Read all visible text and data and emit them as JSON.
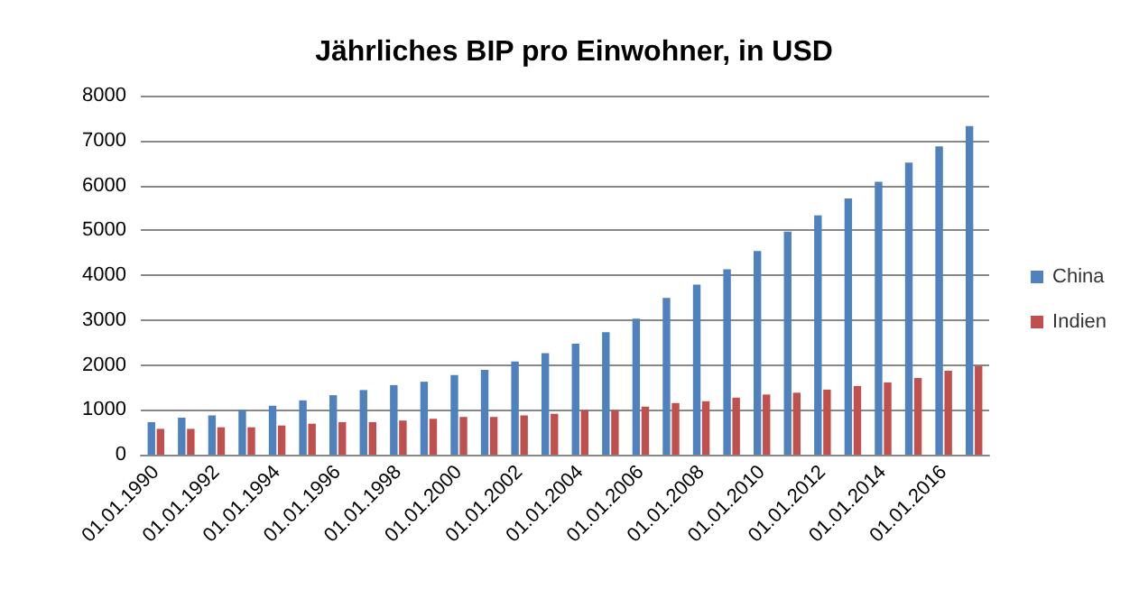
{
  "chart_data": {
    "type": "bar",
    "title": "Jährliches BIP pro Einwohner, in USD",
    "categories": [
      "01.01.1990",
      null,
      "01.01.1992",
      null,
      "01.01.1994",
      null,
      "01.01.1996",
      null,
      "01.01.1998",
      null,
      "01.01.2000",
      null,
      "01.01.2002",
      null,
      "01.01.2004",
      null,
      "01.01.2006",
      null,
      "01.01.2008",
      null,
      "01.01.2010",
      null,
      "01.01.2012",
      null,
      "01.01.2014",
      null,
      "01.01.2016",
      null
    ],
    "series": [
      {
        "name": "China",
        "color": "#4f81bd",
        "values": [
          725,
          825,
          875,
          1000,
          1090,
          1210,
          1325,
          1440,
          1550,
          1625,
          1775,
          1890,
          2075,
          2260,
          2470,
          2730,
          3030,
          3490,
          3790,
          4130,
          4540,
          4970,
          5330,
          5710,
          6080,
          6510,
          6870,
          7320
        ]
      },
      {
        "name": "Indien",
        "color": "#c0504d",
        "values": [
          575,
          575,
          610,
          610,
          650,
          690,
          725,
          725,
          760,
          800,
          840,
          840,
          875,
          910,
          990,
          990,
          1070,
          1150,
          1190,
          1270,
          1340,
          1380,
          1450,
          1530,
          1610,
          1710,
          1870,
          1980
        ]
      }
    ],
    "ylim": [
      0,
      8000
    ],
    "yticks": [
      0,
      1000,
      2000,
      3000,
      4000,
      5000,
      6000,
      7000,
      8000
    ],
    "grid": "y",
    "legend": "right"
  }
}
